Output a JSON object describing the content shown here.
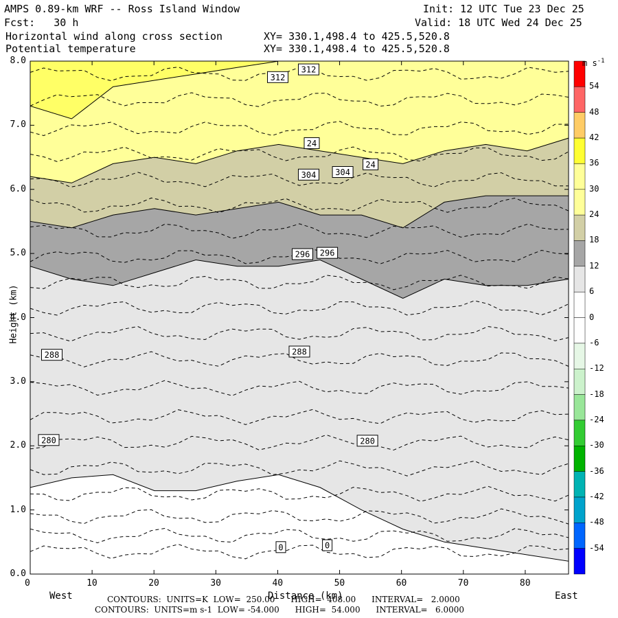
{
  "header": {
    "title": "AMPS 0.89-km WRF -- Ross Island Window",
    "init": "Init: 12 UTC Tue 23 Dec 25",
    "fcst": "Fcst:   30 h",
    "valid": "Valid: 18 UTC Wed 24 Dec 25",
    "line3_left": "Horizontal wind along cross section",
    "line3_right": "XY= 330.1,498.4 to 425.5,520.8",
    "line4_left": "Potential temperature",
    "line4_right": "XY= 330.1,498.4 to 425.5,520.8"
  },
  "chart_data": {
    "type": "contour",
    "xlabel": "Distance (km)",
    "ylabel": "Height (km)",
    "x_ticks": [
      "0",
      "10",
      "20",
      "30",
      "40",
      "50",
      "60",
      "70",
      "80"
    ],
    "y_ticks": [
      "0.0",
      "1.0",
      "2.0",
      "3.0",
      "4.0",
      "5.0",
      "6.0",
      "7.0",
      "8.0"
    ],
    "xlim": [
      0,
      87
    ],
    "ylim": [
      0,
      8
    ],
    "x_end_labels": {
      "left": "West",
      "right": "East"
    },
    "colorbar": {
      "units": "m s-1",
      "labels": [
        "54",
        "48",
        "42",
        "36",
        "30",
        "24",
        "18",
        "12",
        "6",
        "0",
        "-6",
        "-12",
        "-18",
        "-24",
        "-30",
        "-36",
        "-42",
        "-48",
        "-54"
      ],
      "colors": [
        "#ff0000",
        "#ff6666",
        "#ffcc66",
        "#ffff33",
        "#ffff99",
        "#ffff99",
        "#d2cfa6",
        "#a6a6a6",
        "#e6e6e6",
        "#ffffff",
        "#ffffff",
        "#e6f7e6",
        "#ccf2cc",
        "#99e699",
        "#33cc33",
        "#00b300",
        "#00b3b3",
        "#00a3cc",
        "#0066ff",
        "#0000ff"
      ]
    },
    "wind_fill": [
      {
        "range": "< 6",
        "color": "#ffffff",
        "top_km": [
          1.35,
          1.5,
          1.55,
          1.3,
          1.3,
          1.45,
          1.55,
          1.35,
          1.0,
          0.7,
          0.5,
          0.4,
          0.3,
          0.2
        ]
      },
      {
        "range": "6-12",
        "color": "#e6e6e6",
        "top_km": [
          4.8,
          4.6,
          4.5,
          4.7,
          4.9,
          4.8,
          4.8,
          4.9,
          4.6,
          4.3,
          4.6,
          4.5,
          4.5,
          4.6
        ]
      },
      {
        "range": "12-18",
        "color": "#a6a6a6",
        "top_km": [
          5.5,
          5.4,
          5.6,
          5.7,
          5.6,
          5.7,
          5.8,
          5.6,
          5.6,
          5.4,
          5.8,
          5.9,
          5.9,
          5.9
        ]
      },
      {
        "range": "18-24",
        "color": "#d2cfa6",
        "top_km": [
          6.2,
          6.1,
          6.4,
          6.5,
          6.4,
          6.6,
          6.7,
          6.6,
          6.5,
          6.4,
          6.6,
          6.7,
          6.6,
          6.8
        ]
      },
      {
        "range": "24-30",
        "color": "#ffff99",
        "top_km": [
          7.3,
          7.1,
          7.6,
          7.7,
          7.8,
          7.9,
          8.0,
          8.0,
          8.0,
          8.0,
          8.0,
          8.0,
          8.0,
          8.0
        ]
      },
      {
        "range": "30-36",
        "color": "#ffff66",
        "top_km": [
          8.0,
          8.0,
          8.0,
          8.0,
          8.0,
          8.0,
          8.0,
          8.0,
          8.0,
          8.0,
          8.0,
          8.0,
          8.0,
          8.0
        ]
      }
    ],
    "theta_contours_heights_km": [
      0.35,
      0.6,
      0.9,
      1.25,
      1.65,
      2.05,
      2.45,
      2.9,
      3.35,
      3.75,
      4.15,
      4.55,
      4.95,
      5.35,
      5.75,
      6.15,
      6.55,
      6.95,
      7.4,
      7.8
    ],
    "labels": [
      {
        "text": "312",
        "x": 40,
        "y": 7.75
      },
      {
        "text": "312",
        "x": 45,
        "y": 7.87
      },
      {
        "text": "24",
        "x": 45.5,
        "y": 6.72
      },
      {
        "text": "24",
        "x": 55,
        "y": 6.39
      },
      {
        "text": "304",
        "x": 45,
        "y": 6.23
      },
      {
        "text": "304",
        "x": 50.5,
        "y": 6.27
      },
      {
        "text": "296",
        "x": 44,
        "y": 4.99
      },
      {
        "text": "296",
        "x": 48,
        "y": 5.01
      },
      {
        "text": "288",
        "x": 3.5,
        "y": 3.42
      },
      {
        "text": "288",
        "x": 43.5,
        "y": 3.47
      },
      {
        "text": "280",
        "x": 3,
        "y": 2.09
      },
      {
        "text": "280",
        "x": 54.5,
        "y": 2.08
      },
      {
        "text": "0",
        "x": 40.5,
        "y": 0.42
      },
      {
        "text": "0",
        "x": 48,
        "y": 0.45
      }
    ]
  },
  "footer": {
    "line1": "CONTOURS:  UNITS=K  LOW=  250.00      HIGH=  408.00      INTERVAL=   2.0000",
    "line2": "CONTOURS:  UNITS=m s-1  LOW= -54.000      HIGH=  54.000      INTERVAL=   6.0000"
  }
}
